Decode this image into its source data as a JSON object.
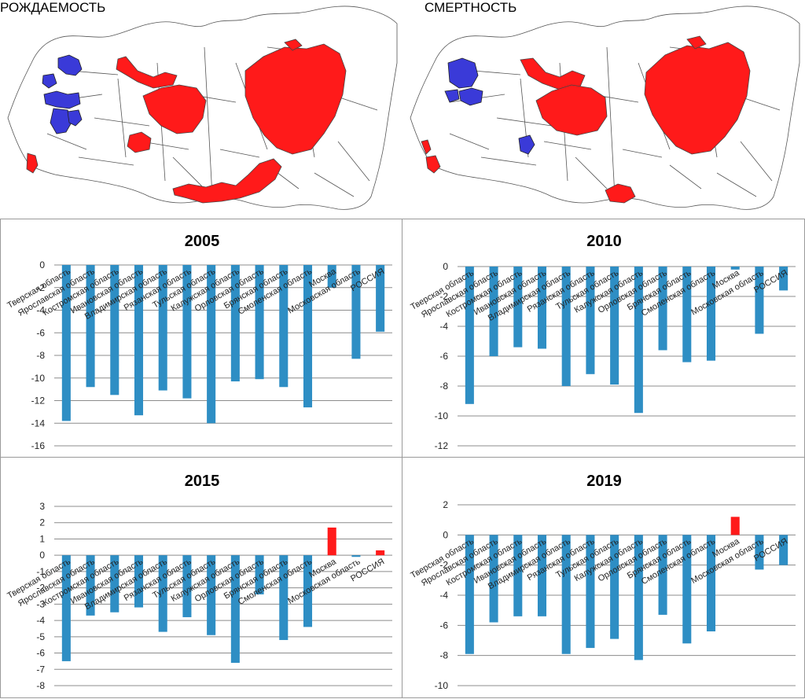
{
  "maps": {
    "left_title": "РОЖДАЕМОСТЬ",
    "right_title": "СМЕРТНОСТЬ",
    "colors": {
      "high": "#ff1a1a",
      "low": "#3a3ad8",
      "neutral": "#ffffff",
      "border": "#444444"
    }
  },
  "chart_data": [
    {
      "type": "bar",
      "title": "2005",
      "categories": [
        "Тверская область",
        "Ярославская область",
        "Костромская область",
        "Ивановская область",
        "Владимирская область",
        "Рязанская область",
        "Тульская область",
        "Калужская область",
        "Орловская область",
        "Брянская область",
        "Смоленская область",
        "Москва",
        "Московская область",
        "РОССИЯ"
      ],
      "values": [
        -13.8,
        -10.8,
        -11.5,
        -13.3,
        -11.1,
        -11.8,
        -14.0,
        -10.3,
        -10.1,
        -10.8,
        -12.6,
        -2.0,
        -8.3,
        -5.9
      ],
      "ylim": [
        -16,
        0
      ],
      "ytick_step": 2,
      "colors": {
        "negative": "#2e8ec4",
        "positive": "#ff1a1a"
      }
    },
    {
      "type": "bar",
      "title": "2010",
      "categories": [
        "Тверская область",
        "Ярославская область",
        "Костромская область",
        "Ивановская область",
        "Владимирская область",
        "Рязанская область",
        "Тульская область",
        "Калужская область",
        "Орловская область",
        "Брянская область",
        "Смоленская область",
        "Москва",
        "Московская область",
        "РОССИЯ"
      ],
      "values": [
        -9.2,
        -6.0,
        -5.4,
        -5.5,
        -8.0,
        -7.2,
        -7.9,
        -9.8,
        -5.6,
        -6.4,
        -6.3,
        -0.2,
        -4.5,
        -1.6
      ],
      "ylim": [
        -12,
        0
      ],
      "ytick_step": 2,
      "colors": {
        "negative": "#2e8ec4",
        "positive": "#ff1a1a"
      }
    },
    {
      "type": "bar",
      "title": "2015",
      "categories": [
        "Тверская область",
        "Ярославская область",
        "Костромская область",
        "Ивановская область",
        "Владимирская область",
        "Рязанская область",
        "Тульская область",
        "Калужская область",
        "Орловская область",
        "Брянская область",
        "Смоленская область",
        "Москва",
        "Московская область",
        "РОССИЯ"
      ],
      "values": [
        -6.5,
        -3.7,
        -3.5,
        -3.2,
        -4.7,
        -3.8,
        -4.9,
        -6.6,
        -2.4,
        -5.2,
        -4.4,
        1.7,
        -0.1,
        0.3
      ],
      "ylim": [
        -8,
        3
      ],
      "ytick_step": 1,
      "colors": {
        "negative": "#2e8ec4",
        "positive": "#ff1a1a"
      }
    },
    {
      "type": "bar",
      "title": "2019",
      "categories": [
        "Тверская область",
        "Ярославская область",
        "Костромская область",
        "Ивановская область",
        "Владимирская область",
        "Рязанская область",
        "Тульская область",
        "Калужская область",
        "Орловская область",
        "Брянская область",
        "Смоленская область",
        "Москва",
        "Московская область",
        "РОССИЯ"
      ],
      "values": [
        -7.9,
        -5.8,
        -5.4,
        -5.4,
        -7.9,
        -7.5,
        -6.9,
        -8.3,
        -5.3,
        -7.2,
        -6.4,
        1.2,
        -2.3,
        -2.0
      ],
      "ylim": [
        -10,
        2
      ],
      "ytick_step": 2,
      "colors": {
        "negative": "#2e8ec4",
        "positive": "#ff1a1a"
      }
    }
  ]
}
